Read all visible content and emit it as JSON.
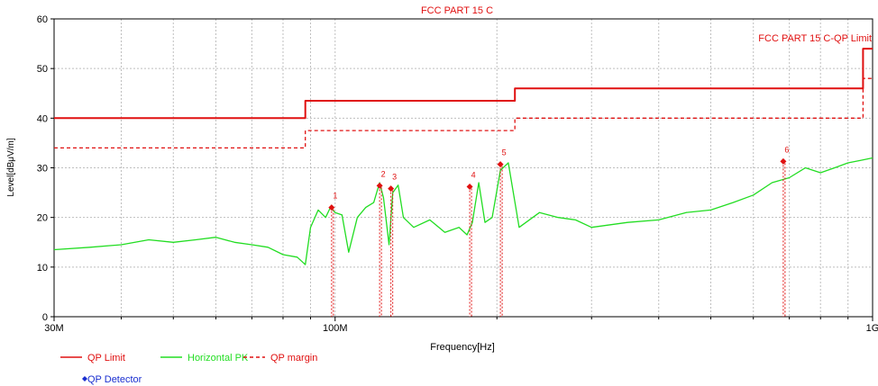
{
  "chart_data": {
    "type": "line",
    "title": "FCC PART 15 C",
    "limit_label": "FCC PART 15 C-QP Limit",
    "xlabel": "Frequency[Hz]",
    "ylabel": "Level[dBμV/m]",
    "x_scale": "log",
    "xlim": [
      30000000,
      1000000000
    ],
    "ylim": [
      0,
      60
    ],
    "grid": true,
    "x_ticks": [
      {
        "value": 30000000,
        "label": "30M"
      },
      {
        "value": 100000000,
        "label": "100M"
      },
      {
        "value": 1000000000,
        "label": "1G"
      }
    ],
    "x_minor_ticks": [
      40000000,
      50000000,
      60000000,
      70000000,
      80000000,
      90000000,
      200000000,
      300000000,
      400000000,
      500000000,
      600000000,
      700000000,
      800000000,
      900000000
    ],
    "y_ticks": [
      0,
      10,
      20,
      30,
      40,
      50,
      60
    ],
    "colors": {
      "limit": "#e01010",
      "margin": "#e01010",
      "trace": "#22dd22",
      "marker": "#e01010",
      "detector": "#1a2fd0",
      "grid": "#bfbfbf"
    },
    "series": [
      {
        "name": "QP Limit",
        "style": "solid",
        "x": [
          30000000,
          88000000,
          88000000,
          216000000,
          216000000,
          960000000,
          960000000,
          1000000000
        ],
        "y": [
          40,
          40,
          43.5,
          43.5,
          46,
          46,
          54,
          54
        ]
      },
      {
        "name": "QP margin",
        "style": "dashed",
        "x": [
          30000000,
          88000000,
          88000000,
          216000000,
          216000000,
          960000000,
          960000000,
          1000000000
        ],
        "y": [
          34,
          34,
          37.5,
          37.5,
          40,
          40,
          48,
          48
        ]
      },
      {
        "name": "Horizontal PK",
        "style": "solid",
        "x": [
          30000000,
          35000000,
          40000000,
          45000000,
          50000000,
          55000000,
          60000000,
          65000000,
          70000000,
          75000000,
          80000000,
          85000000,
          87000000,
          88000000,
          90000000,
          93000000,
          96000000,
          98000000,
          100000000,
          103000000,
          106000000,
          110000000,
          114000000,
          118000000,
          121000000,
          123000000,
          126000000,
          128000000,
          131000000,
          134000000,
          140000000,
          150000000,
          160000000,
          170000000,
          176000000,
          180000000,
          185000000,
          190000000,
          196000000,
          203000000,
          210000000,
          220000000,
          240000000,
          260000000,
          280000000,
          300000000,
          350000000,
          400000000,
          450000000,
          500000000,
          550000000,
          600000000,
          650000000,
          700000000,
          750000000,
          800000000,
          850000000,
          900000000,
          950000000,
          1000000000
        ],
        "y": [
          13.5,
          14,
          14.5,
          15.5,
          15,
          15.5,
          16,
          15,
          14.5,
          14,
          12.5,
          12,
          11,
          10.5,
          18,
          21.5,
          20,
          22,
          21,
          20.5,
          13,
          20,
          22,
          23,
          27,
          24,
          14.5,
          25,
          26.5,
          20,
          18,
          19.5,
          17,
          18,
          16.5,
          19,
          27,
          19,
          20,
          29.5,
          31,
          18,
          21,
          20,
          19.5,
          18,
          19,
          19.5,
          21,
          21.5,
          23,
          24.5,
          27,
          28,
          30,
          29,
          30,
          31,
          31.5,
          32
        ]
      }
    ],
    "markers": [
      {
        "label": "1",
        "x": 98500000,
        "y": 22
      },
      {
        "label": "2",
        "x": 121000000,
        "y": 26.4
      },
      {
        "label": "3",
        "x": 127000000,
        "y": 25.8
      },
      {
        "label": "4",
        "x": 178000000,
        "y": 26.2
      },
      {
        "label": "5",
        "x": 203000000,
        "y": 30.7
      },
      {
        "label": "6",
        "x": 682000000,
        "y": 31.3
      }
    ],
    "legend": {
      "placement": "bottom-left",
      "items": [
        {
          "label": "QP Limit",
          "kind": "line-solid",
          "color": "#e01010"
        },
        {
          "label": "Horizontal PK",
          "kind": "line-solid",
          "color": "#22dd22"
        },
        {
          "label": "QP margin",
          "kind": "line-dashed",
          "color": "#e01010"
        },
        {
          "label": "QP Detector",
          "kind": "diamond",
          "color": "#1a2fd0"
        }
      ]
    }
  }
}
